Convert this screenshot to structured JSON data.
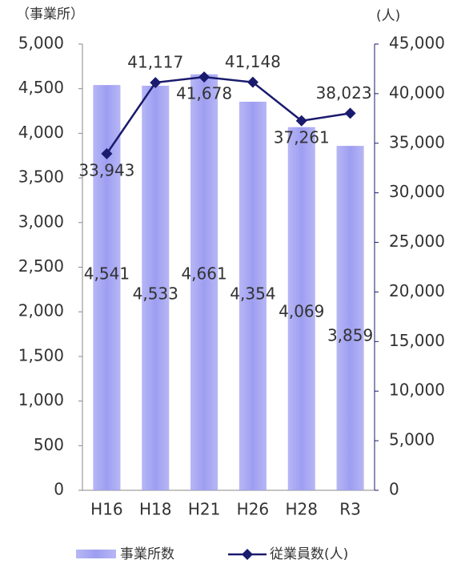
{
  "chart_data": {
    "type": "combo",
    "y_axis_label": "（事業所）",
    "y2_axis_label": "(人)",
    "categories": [
      "H16",
      "H18",
      "H21",
      "H26",
      "H28",
      "R3"
    ],
    "series": [
      {
        "name": "事業所数",
        "type": "bar",
        "color": "#9e9ef2",
        "values": [
          4541,
          4533,
          4661,
          4354,
          4069,
          3859
        ],
        "value_labels": [
          "4,541",
          "4,533",
          "4,661",
          "4,354",
          "4,069",
          "3,859"
        ]
      },
      {
        "name": "従業員数(人)",
        "type": "line",
        "axis": "y2",
        "color": "#1a1a6e",
        "values": [
          33943,
          41117,
          41678,
          41148,
          37261,
          38023
        ],
        "value_labels": [
          "33,943",
          "41,117",
          "41,678",
          "41,148",
          "37,261",
          "38,023"
        ]
      }
    ],
    "ylim": [
      0,
      5000
    ],
    "yticks": [
      0,
      500,
      {
        "value": 1000,
        "label": "1,000"
      },
      {
        "value": 1500,
        "label": "1,500"
      },
      {
        "value": 2000,
        "label": "2,000"
      },
      {
        "value": 2500,
        "label": "2,500"
      },
      {
        "value": 3000,
        "label": "3,000"
      },
      {
        "value": 3500,
        "label": "3,500"
      },
      {
        "value": 4000,
        "label": "4,000"
      },
      {
        "value": 4500,
        "label": "4,500"
      },
      {
        "value": 5000,
        "label": "5,000"
      }
    ],
    "y2lim": [
      0,
      45000
    ],
    "y2ticks": [
      0,
      {
        "value": 5000,
        "label": "5,000"
      },
      {
        "value": 10000,
        "label": "10,000"
      },
      {
        "value": 15000,
        "label": "15,000"
      },
      {
        "value": 20000,
        "label": "20,000"
      },
      {
        "value": 25000,
        "label": "25,000"
      },
      {
        "value": 30000,
        "label": "30,000"
      },
      {
        "value": 35000,
        "label": "35,000"
      },
      {
        "value": 40000,
        "label": "40,000"
      },
      {
        "value": 45000,
        "label": "45,000"
      }
    ],
    "y2_color": "#1f7fc4",
    "legend": "bottom"
  }
}
